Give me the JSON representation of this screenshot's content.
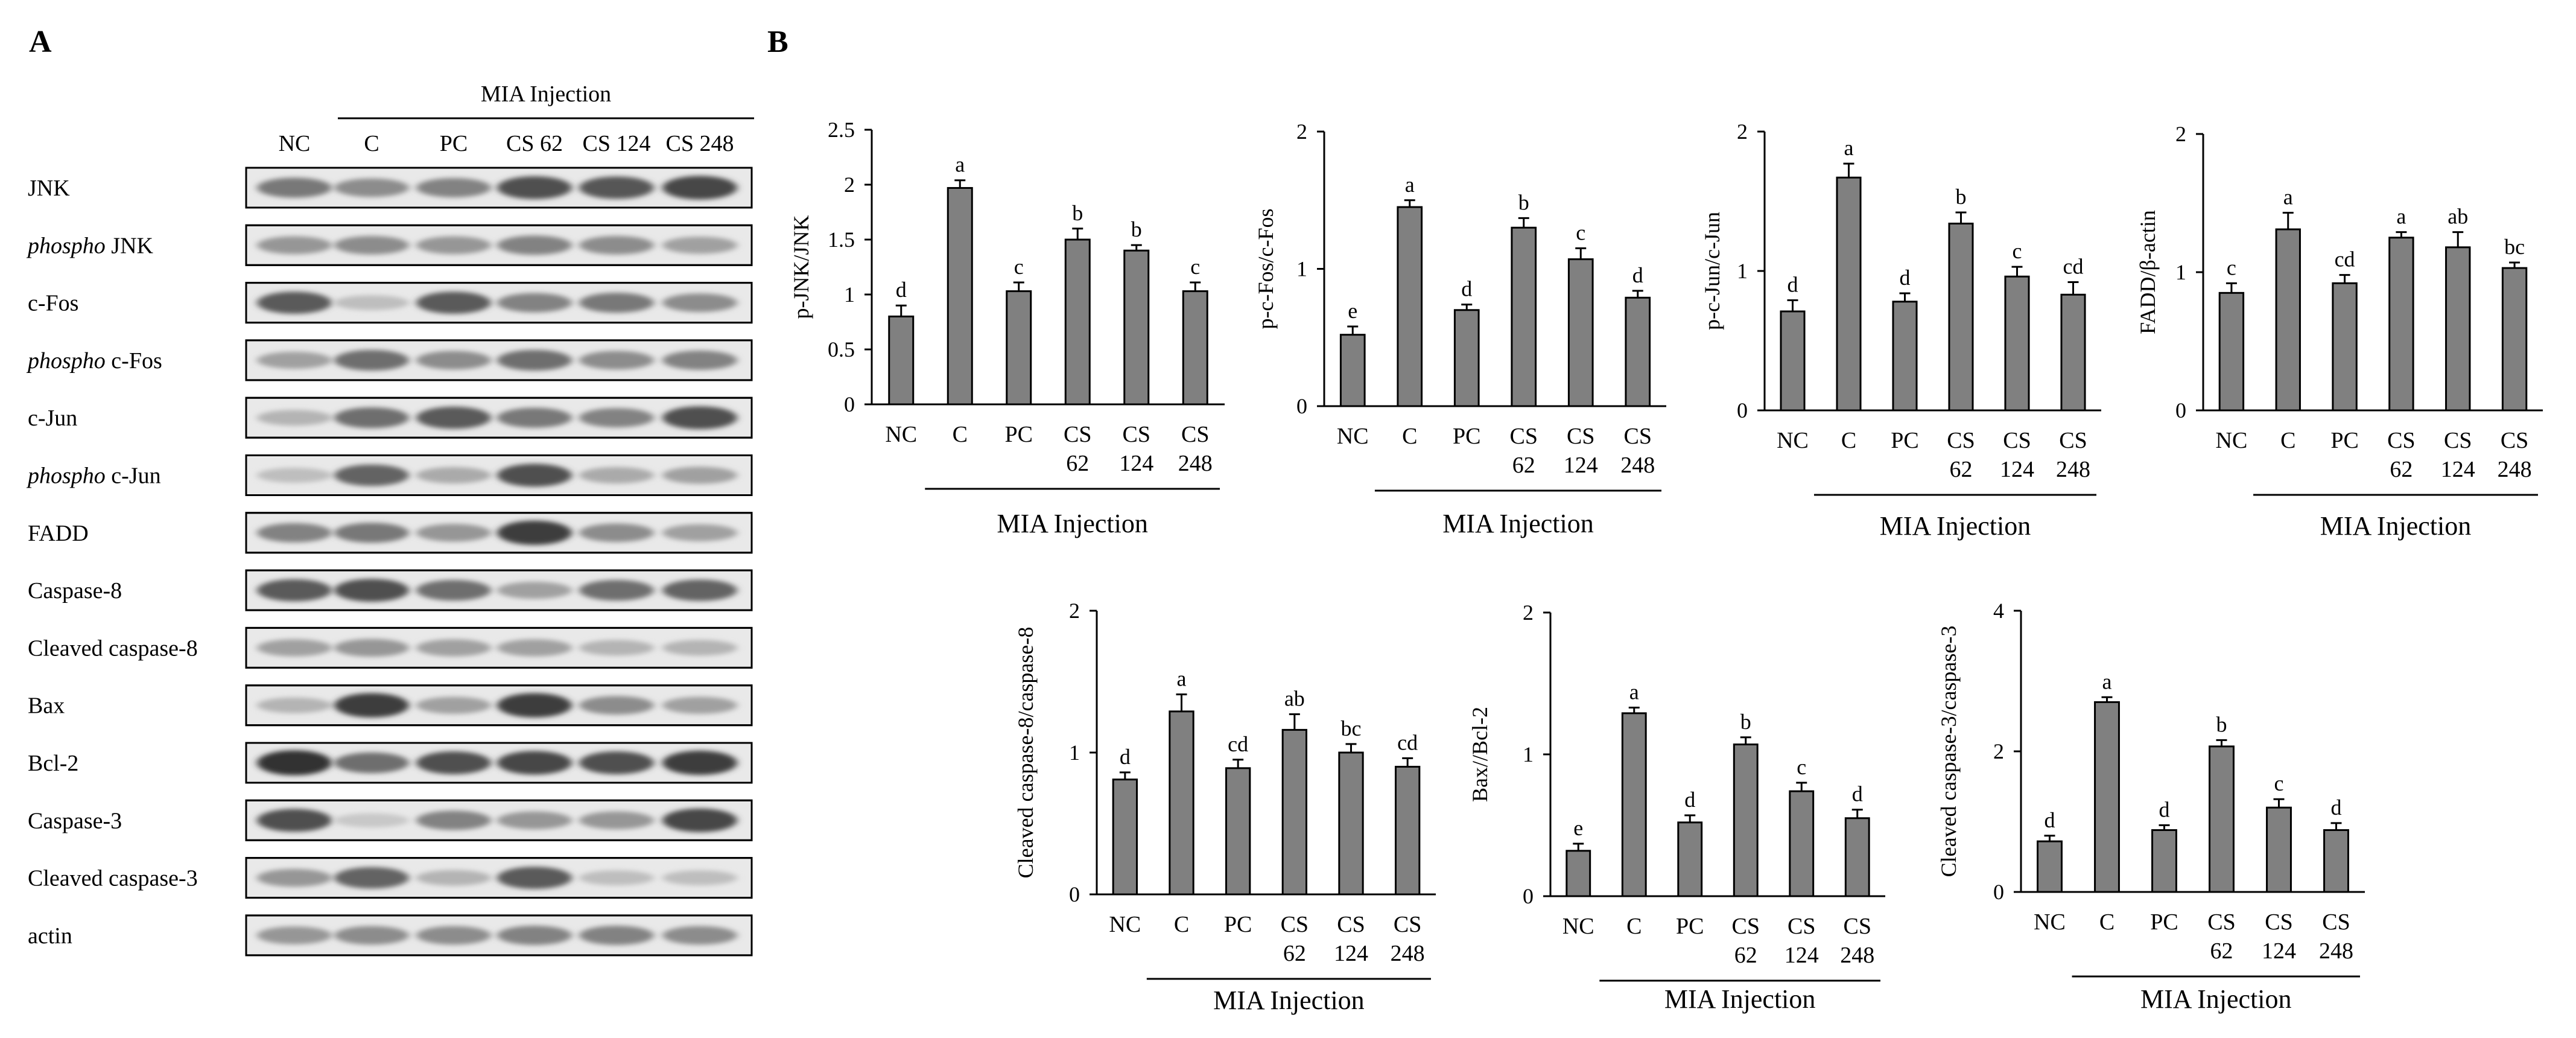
{
  "panel_labels": {
    "a": "A",
    "b": "B"
  },
  "blot": {
    "group_label": "MIA Injection",
    "lanes": [
      "NC",
      "C",
      "PC",
      "CS 62",
      "CS 124",
      "CS 248"
    ],
    "rows": [
      {
        "prefix": "",
        "name": "JNK",
        "intensity": [
          0.55,
          0.45,
          0.5,
          0.75,
          0.72,
          0.8
        ]
      },
      {
        "prefix": "phospho",
        "name": " JNK",
        "intensity": [
          0.4,
          0.45,
          0.4,
          0.5,
          0.45,
          0.35
        ]
      },
      {
        "prefix": "",
        "name": "c-Fos",
        "intensity": [
          0.7,
          0.2,
          0.7,
          0.5,
          0.55,
          0.45
        ]
      },
      {
        "prefix": "phospho",
        "name": " c-Fos",
        "intensity": [
          0.35,
          0.6,
          0.45,
          0.6,
          0.45,
          0.5
        ]
      },
      {
        "prefix": "",
        "name": "c-Jun",
        "intensity": [
          0.25,
          0.6,
          0.7,
          0.55,
          0.5,
          0.75
        ]
      },
      {
        "prefix": "phospho",
        "name": " c-Jun",
        "intensity": [
          0.2,
          0.65,
          0.3,
          0.75,
          0.3,
          0.35
        ]
      },
      {
        "prefix": "",
        "name": "FADD",
        "intensity": [
          0.5,
          0.55,
          0.4,
          0.85,
          0.45,
          0.35
        ]
      },
      {
        "prefix": "",
        "name": "Caspase-8",
        "intensity": [
          0.7,
          0.75,
          0.6,
          0.35,
          0.6,
          0.65
        ]
      },
      {
        "prefix": "",
        "name": "Cleaved caspase-8",
        "intensity": [
          0.35,
          0.4,
          0.35,
          0.35,
          0.25,
          0.25
        ]
      },
      {
        "prefix": "",
        "name": "Bax",
        "intensity": [
          0.25,
          0.85,
          0.35,
          0.85,
          0.45,
          0.35
        ]
      },
      {
        "prefix": "",
        "name": "Bcl-2",
        "intensity": [
          0.9,
          0.6,
          0.75,
          0.8,
          0.75,
          0.85
        ]
      },
      {
        "prefix": "",
        "name": "Caspase-3",
        "intensity": [
          0.75,
          0.15,
          0.5,
          0.4,
          0.4,
          0.8
        ]
      },
      {
        "prefix": "",
        "name": "Cleaved caspase-3",
        "intensity": [
          0.4,
          0.65,
          0.25,
          0.7,
          0.2,
          0.2
        ]
      },
      {
        "prefix": "",
        "name": "actin",
        "intensity": [
          0.4,
          0.45,
          0.45,
          0.5,
          0.5,
          0.45
        ]
      }
    ]
  },
  "chart_data": [
    {
      "type": "bar",
      "title": "",
      "ylabel": "p-JNK/JNK",
      "xlabel": "MIA Injection",
      "categories": [
        [
          "NC"
        ],
        [
          "C"
        ],
        [
          "PC"
        ],
        [
          "CS",
          "62"
        ],
        [
          "CS",
          "124"
        ],
        [
          "CS",
          "248"
        ]
      ],
      "values": [
        0.8,
        1.97,
        1.03,
        1.5,
        1.4,
        1.03
      ],
      "errors": [
        0.1,
        0.07,
        0.08,
        0.1,
        0.05,
        0.08
      ],
      "letters": [
        "d",
        "a",
        "c",
        "b",
        "b",
        "c"
      ],
      "ylim": [
        0,
        2.5
      ],
      "yticks": [
        0,
        0.5,
        1,
        1.5,
        2,
        2.5
      ],
      "ytick_labels": [
        "0",
        "0.5",
        "1",
        "1.5",
        "2",
        "2.5"
      ]
    },
    {
      "type": "bar",
      "title": "",
      "ylabel": "p-c-Fos/c-Fos",
      "xlabel": "MIA Injection",
      "categories": [
        [
          "NC"
        ],
        [
          "C"
        ],
        [
          "PC"
        ],
        [
          "CS",
          "62"
        ],
        [
          "CS",
          "124"
        ],
        [
          "CS",
          "248"
        ]
      ],
      "values": [
        0.52,
        1.45,
        0.7,
        1.3,
        1.07,
        0.79
      ],
      "errors": [
        0.06,
        0.05,
        0.04,
        0.07,
        0.08,
        0.05
      ],
      "letters": [
        "e",
        "a",
        "d",
        "b",
        "c",
        "d"
      ],
      "ylim": [
        0,
        2
      ],
      "yticks": [
        0,
        1,
        2
      ],
      "ytick_labels": [
        "0",
        "1",
        "2"
      ]
    },
    {
      "type": "bar",
      "title": "",
      "ylabel": "p-c-Jun/c-Jun",
      "xlabel": "MIA Injection",
      "categories": [
        [
          "NC"
        ],
        [
          "C"
        ],
        [
          "PC"
        ],
        [
          "CS",
          "62"
        ],
        [
          "CS",
          "124"
        ],
        [
          "CS",
          "248"
        ]
      ],
      "values": [
        0.71,
        1.67,
        0.78,
        1.34,
        0.96,
        0.83
      ],
      "errors": [
        0.08,
        0.1,
        0.06,
        0.08,
        0.07,
        0.09
      ],
      "letters": [
        "d",
        "a",
        "d",
        "b",
        "c",
        "cd"
      ],
      "ylim": [
        0,
        2
      ],
      "yticks": [
        0,
        1,
        2
      ],
      "ytick_labels": [
        "0",
        "1",
        "2"
      ]
    },
    {
      "type": "bar",
      "title": "",
      "ylabel": "FADD/β-actin",
      "xlabel": "MIA Injection",
      "categories": [
        [
          "NC"
        ],
        [
          "C"
        ],
        [
          "PC"
        ],
        [
          "CS",
          "62"
        ],
        [
          "CS",
          "124"
        ],
        [
          "CS",
          "248"
        ]
      ],
      "values": [
        0.85,
        1.31,
        0.92,
        1.25,
        1.18,
        1.03
      ],
      "errors": [
        0.07,
        0.12,
        0.06,
        0.04,
        0.11,
        0.04
      ],
      "letters": [
        "c",
        "a",
        "cd",
        "a",
        "ab",
        "bc"
      ],
      "ylim": [
        0,
        2
      ],
      "yticks": [
        0,
        1,
        2
      ],
      "ytick_labels": [
        "0",
        "1",
        "2"
      ]
    },
    {
      "type": "bar",
      "title": "",
      "ylabel": "Cleaved caspase-8/caspase-8",
      "xlabel": "MIA Injection",
      "categories": [
        [
          "NC"
        ],
        [
          "C"
        ],
        [
          "PC"
        ],
        [
          "CS",
          "62"
        ],
        [
          "CS",
          "124"
        ],
        [
          "CS",
          "248"
        ]
      ],
      "values": [
        0.81,
        1.29,
        0.89,
        1.16,
        1.0,
        0.9
      ],
      "errors": [
        0.05,
        0.12,
        0.06,
        0.11,
        0.06,
        0.06
      ],
      "letters": [
        "d",
        "a",
        "cd",
        "ab",
        "bc",
        "cd"
      ],
      "ylim": [
        0,
        2
      ],
      "yticks": [
        0,
        1,
        2
      ],
      "ytick_labels": [
        "0",
        "1",
        "2"
      ]
    },
    {
      "type": "bar",
      "title": "",
      "ylabel": "Bax//Bcl-2",
      "xlabel": "MIA Injection",
      "categories": [
        [
          "NC"
        ],
        [
          "C"
        ],
        [
          "PC"
        ],
        [
          "CS",
          "62"
        ],
        [
          "CS",
          "124"
        ],
        [
          "CS",
          "248"
        ]
      ],
      "values": [
        0.32,
        1.29,
        0.52,
        1.07,
        0.74,
        0.55
      ],
      "errors": [
        0.05,
        0.04,
        0.05,
        0.05,
        0.06,
        0.06
      ],
      "letters": [
        "e",
        "a",
        "d",
        "b",
        "c",
        "d"
      ],
      "ylim": [
        0,
        2
      ],
      "yticks": [
        0,
        1,
        2
      ],
      "ytick_labels": [
        "0",
        "1",
        "2"
      ]
    },
    {
      "type": "bar",
      "title": "",
      "ylabel": "Cleaved caspase-3/caspase-3",
      "xlabel": "MIA Injection",
      "categories": [
        [
          "NC"
        ],
        [
          "C"
        ],
        [
          "PC"
        ],
        [
          "CS",
          "62"
        ],
        [
          "CS",
          "124"
        ],
        [
          "CS",
          "248"
        ]
      ],
      "values": [
        0.72,
        2.7,
        0.88,
        2.07,
        1.2,
        0.88
      ],
      "errors": [
        0.08,
        0.07,
        0.07,
        0.09,
        0.12,
        0.1
      ],
      "letters": [
        "d",
        "a",
        "d",
        "b",
        "c",
        "d"
      ],
      "ylim": [
        0,
        4
      ],
      "yticks": [
        0,
        2,
        4
      ],
      "ytick_labels": [
        "0",
        "2",
        "4"
      ]
    }
  ]
}
